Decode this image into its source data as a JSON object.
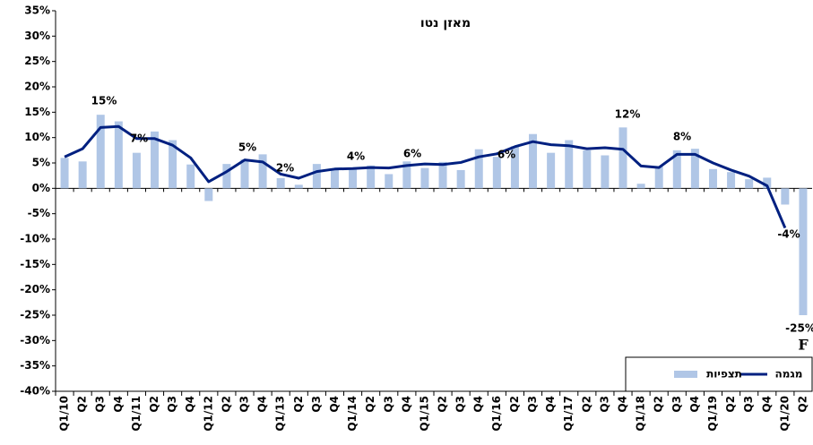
{
  "chart_data": {
    "type": "bar_line",
    "title": "מאזן נטו",
    "categories": [
      "Q1/10",
      "Q2",
      "Q3",
      "Q4",
      "Q1/11",
      "Q2",
      "Q3",
      "Q4",
      "Q1/12",
      "Q2",
      "Q3",
      "Q4",
      "Q1/13",
      "Q2",
      "Q3",
      "Q4",
      "Q1/14",
      "Q2",
      "Q3",
      "Q4",
      "Q1/15",
      "Q2",
      "Q3",
      "Q4",
      "Q1/16",
      "Q2",
      "Q3",
      "Q4",
      "Q1/17",
      "Q2",
      "Q3",
      "Q4",
      "Q1/18",
      "Q2",
      "Q3",
      "Q4",
      "Q1/19",
      "Q2",
      "Q3",
      "Q4",
      "Q1/20",
      "Q2"
    ],
    "series": [
      {
        "name": "מגמה",
        "kind": "line",
        "color": "#002080",
        "values": [
          6.2,
          7.8,
          12,
          12.2,
          9.8,
          9.8,
          8.5,
          6,
          1.3,
          3.3,
          5.6,
          5.2,
          2.8,
          2,
          3.3,
          3.8,
          3.9,
          4.1,
          4,
          4.5,
          4.8,
          4.7,
          5.1,
          6.2,
          6.8,
          8.2,
          9.2,
          8.6,
          8.4,
          7.8,
          8,
          7.7,
          4.4,
          4.1,
          6.7,
          6.7,
          5,
          3.6,
          2.4,
          0.5,
          -7.8,
          null
        ]
      },
      {
        "name": "תצפיות",
        "kind": "bar",
        "color": "#b0c6e6",
        "values": [
          6,
          5.3,
          14.5,
          13.2,
          7,
          11.2,
          9.5,
          4.7,
          -2.5,
          4.8,
          5.7,
          6.7,
          2,
          0.7,
          4.8,
          3.8,
          4,
          4.5,
          2.8,
          5.3,
          4,
          5.2,
          3.6,
          7.7,
          6.2,
          8.3,
          10.7,
          7,
          9.5,
          7.5,
          6.5,
          12,
          0.9,
          4.3,
          7.5,
          7.8,
          3.8,
          3.2,
          1.8,
          2.1,
          -3.2,
          -25
        ]
      }
    ],
    "annotations": [
      "15%",
      "7%",
      "5%",
      "2%",
      "4%",
      "6%",
      "6%",
      "12%",
      "8%",
      "-4%",
      "-25%",
      "F"
    ],
    "ylim": [
      -40,
      35
    ],
    "yticks": [
      {
        "value": -40,
        "label": "-40%"
      },
      {
        "value": -35,
        "label": "-35%"
      },
      {
        "value": -30,
        "label": "-30%"
      },
      {
        "value": -25,
        "label": "-25%"
      },
      {
        "value": -20,
        "label": "-20%"
      },
      {
        "value": -15,
        "label": "-15%"
      },
      {
        "value": -10,
        "label": "-10%"
      },
      {
        "value": -5,
        "label": "-5%"
      },
      {
        "value": 0,
        "label": "0%"
      },
      {
        "value": 5,
        "label": "5%"
      },
      {
        "value": 10,
        "label": "10%"
      },
      {
        "value": 15,
        "label": "15%"
      },
      {
        "value": 20,
        "label": "20%"
      },
      {
        "value": 25,
        "label": "25%"
      },
      {
        "value": 30,
        "label": "30%"
      },
      {
        "value": 35,
        "label": "35%"
      }
    ]
  }
}
